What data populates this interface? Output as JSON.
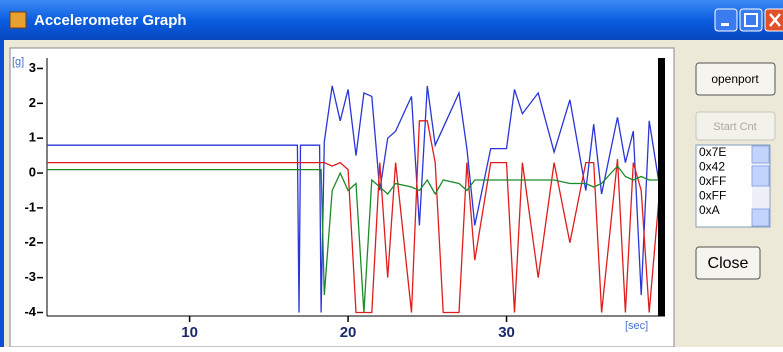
{
  "window": {
    "title": "Accelerometer Graph"
  },
  "chart_data": {
    "type": "line",
    "ylabel": "[g]",
    "xlabel": "[sec]",
    "x": [
      1,
      16.8,
      16.9,
      17.0,
      18.2,
      18.3,
      18.5,
      19.0,
      19.5,
      20.0,
      20.5,
      21.0,
      21.5,
      22.0,
      22.5,
      23.0,
      24.0,
      24.5,
      25.0,
      25.5,
      26.0,
      27.0,
      27.5,
      28.0,
      29.0,
      30.0,
      30.5,
      31.0,
      32.0,
      33.0,
      34.0,
      35.0,
      35.5,
      36.0,
      37.0,
      37.5,
      38.0,
      38.5,
      39.0,
      39.7
    ],
    "series": [
      {
        "color": "#2a35d8",
        "values": [
          0.8,
          0.8,
          -4,
          0.8,
          0.8,
          -4,
          0.9,
          2.5,
          1.5,
          2.4,
          0.5,
          2.3,
          2.2,
          -0.5,
          1.0,
          1.2,
          2.2,
          -1.5,
          2.5,
          0.8,
          1.3,
          2.3,
          0.7,
          -1.5,
          0.7,
          0.7,
          2.4,
          1.7,
          2.3,
          0.6,
          2.1,
          -0.5,
          1.4,
          -0.6,
          1.6,
          0.3,
          1.2,
          -3.5,
          1.5,
          -0.5
        ]
      },
      {
        "color": "#e01c1c",
        "values": [
          0.3,
          0.3,
          0.3,
          0.3,
          0.3,
          0.3,
          0.3,
          0.2,
          0.3,
          0.1,
          -4,
          -4,
          -4,
          0.3,
          -3,
          0.3,
          -4,
          1.5,
          1.5,
          0.3,
          -4,
          -4,
          0.3,
          -2.5,
          0.3,
          0.3,
          -4,
          0.3,
          -3,
          0.3,
          -2,
          0.3,
          0.3,
          -4,
          0.4,
          -4,
          0.3,
          -0.5,
          -4,
          -0.3
        ]
      },
      {
        "color": "#1d8a2a",
        "values": [
          0.1,
          0.1,
          0.1,
          0.1,
          0.1,
          0.1,
          -3.5,
          -0.5,
          0,
          -0.5,
          -0.3,
          -4,
          -0.2,
          -0.4,
          -0.6,
          -0.3,
          -0.4,
          -0.5,
          -0.2,
          -0.6,
          -0.2,
          -0.3,
          -0.5,
          -0.2,
          -0.2,
          -0.2,
          -0.2,
          -0.2,
          -0.2,
          -0.2,
          -0.3,
          -0.3,
          -0.4,
          -0.3,
          0.2,
          -0.1,
          -0.2,
          -0.1,
          -0.2,
          -0.2
        ]
      }
    ],
    "xlim": [
      1,
      40
    ],
    "xticks": [
      10,
      20,
      30
    ],
    "ylim": [
      -4.1,
      3.3
    ],
    "yticks": [
      3,
      2,
      1,
      0,
      -1,
      -2,
      -3,
      -4
    ]
  },
  "buttons": {
    "open": "openport",
    "start": "Start Cnt",
    "close": "Close"
  },
  "list": {
    "items": [
      "0x7E",
      "0x42",
      "0xFF",
      "0xFF",
      "0xA"
    ]
  }
}
